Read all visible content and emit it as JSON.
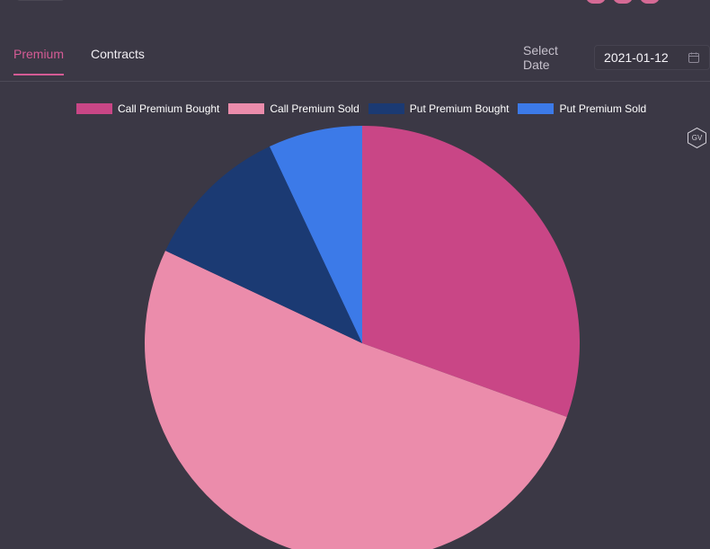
{
  "header": {
    "tabs": [
      {
        "label": "Premium"
      },
      {
        "label": "Contracts"
      }
    ],
    "date": {
      "label": "Select Date",
      "value": "2021-01-12"
    }
  },
  "chart_data": {
    "type": "pie",
    "series": [
      {
        "name": "Call Premium Bought",
        "value": 30.5,
        "color": "#c94686"
      },
      {
        "name": "Call Premium Sold",
        "value": 51.5,
        "color": "#eb8cab"
      },
      {
        "name": "Put Premium Bought",
        "value": 11.0,
        "color": "#1b3a73"
      },
      {
        "name": "Put Premium Sold",
        "value": 7.0,
        "color": "#3c7ae8"
      }
    ],
    "legend_position": "top"
  },
  "badge": {
    "text": "GV"
  },
  "colors": {
    "background": "#3b3845",
    "accent": "#d55b95",
    "text": "#f1eef3"
  }
}
